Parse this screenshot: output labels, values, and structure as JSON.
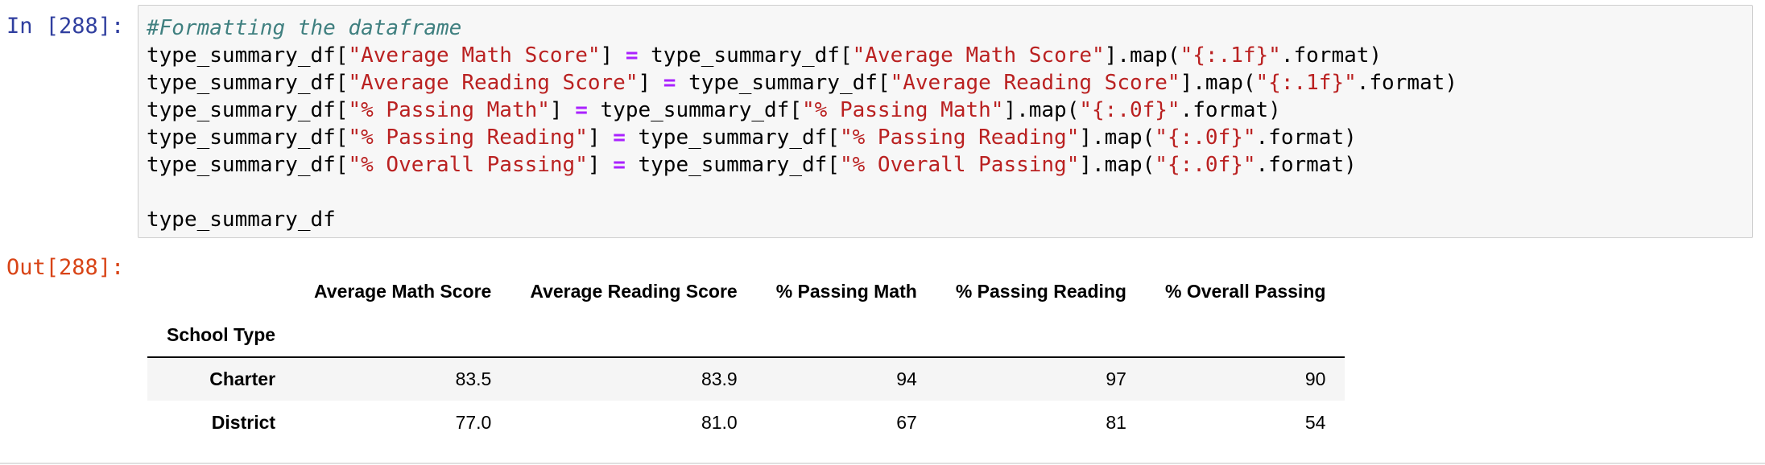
{
  "input_prompt": "In [288]:",
  "output_prompt": "Out[288]:",
  "code_lines": [
    [
      {
        "t": "#Formatting the dataframe",
        "c": "comment"
      }
    ],
    [
      {
        "t": "type_summary_df[",
        "c": ""
      },
      {
        "t": "\"Average Math Score\"",
        "c": "str"
      },
      {
        "t": "] ",
        "c": ""
      },
      {
        "t": "=",
        "c": "op"
      },
      {
        "t": " type_summary_df[",
        "c": ""
      },
      {
        "t": "\"Average Math Score\"",
        "c": "str"
      },
      {
        "t": "].map(",
        "c": ""
      },
      {
        "t": "\"{:.1f}\"",
        "c": "str"
      },
      {
        "t": ".format)",
        "c": ""
      }
    ],
    [
      {
        "t": "type_summary_df[",
        "c": ""
      },
      {
        "t": "\"Average Reading Score\"",
        "c": "str"
      },
      {
        "t": "] ",
        "c": ""
      },
      {
        "t": "=",
        "c": "op"
      },
      {
        "t": " type_summary_df[",
        "c": ""
      },
      {
        "t": "\"Average Reading Score\"",
        "c": "str"
      },
      {
        "t": "].map(",
        "c": ""
      },
      {
        "t": "\"{:.1f}\"",
        "c": "str"
      },
      {
        "t": ".format)",
        "c": ""
      }
    ],
    [
      {
        "t": "type_summary_df[",
        "c": ""
      },
      {
        "t": "\"% Passing Math\"",
        "c": "str"
      },
      {
        "t": "] ",
        "c": ""
      },
      {
        "t": "=",
        "c": "op"
      },
      {
        "t": " type_summary_df[",
        "c": ""
      },
      {
        "t": "\"% Passing Math\"",
        "c": "str"
      },
      {
        "t": "].map(",
        "c": ""
      },
      {
        "t": "\"{:.0f}\"",
        "c": "str"
      },
      {
        "t": ".format)",
        "c": ""
      }
    ],
    [
      {
        "t": "type_summary_df[",
        "c": ""
      },
      {
        "t": "\"% Passing Reading\"",
        "c": "str"
      },
      {
        "t": "] ",
        "c": ""
      },
      {
        "t": "=",
        "c": "op"
      },
      {
        "t": " type_summary_df[",
        "c": ""
      },
      {
        "t": "\"% Passing Reading\"",
        "c": "str"
      },
      {
        "t": "].map(",
        "c": ""
      },
      {
        "t": "\"{:.0f}\"",
        "c": "str"
      },
      {
        "t": ".format)",
        "c": ""
      }
    ],
    [
      {
        "t": "type_summary_df[",
        "c": ""
      },
      {
        "t": "\"% Overall Passing\"",
        "c": "str"
      },
      {
        "t": "] ",
        "c": ""
      },
      {
        "t": "=",
        "c": "op"
      },
      {
        "t": " type_summary_df[",
        "c": ""
      },
      {
        "t": "\"% Overall Passing\"",
        "c": "str"
      },
      {
        "t": "].map(",
        "c": ""
      },
      {
        "t": "\"{:.0f}\"",
        "c": "str"
      },
      {
        "t": ".format)",
        "c": ""
      }
    ],
    [],
    [
      {
        "t": "type_summary_df",
        "c": ""
      }
    ]
  ],
  "table": {
    "columns": [
      "Average Math Score",
      "Average Reading Score",
      "% Passing Math",
      "% Passing Reading",
      "% Overall Passing"
    ],
    "index_name": "School Type",
    "rows": [
      {
        "index": "Charter",
        "values": [
          "83.5",
          "83.9",
          "94",
          "97",
          "90"
        ]
      },
      {
        "index": "District",
        "values": [
          "77.0",
          "81.0",
          "67",
          "81",
          "54"
        ]
      }
    ]
  },
  "colors": {
    "prompt_in": "#303f9f",
    "prompt_out": "#d84315",
    "comment": "#408080",
    "string": "#ba2121",
    "operator": "#aa22ff"
  }
}
